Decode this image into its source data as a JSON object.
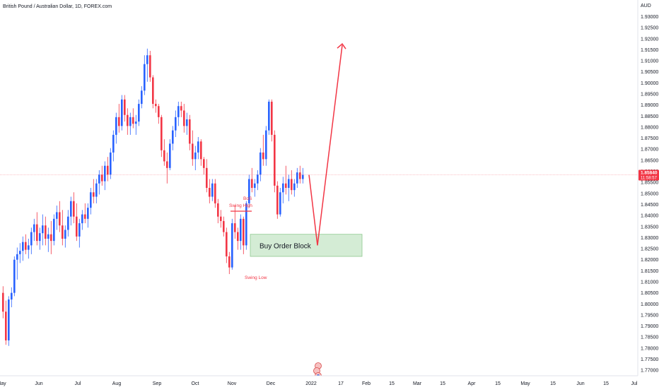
{
  "header": {
    "symbol_title": "British Pound / Australian Dollar, 1D, FOREX.com"
  },
  "price_axis": {
    "currency_label": "AUD",
    "last_price": "1.85840",
    "countdown": "11:58:57"
  },
  "annotations": {
    "bos": "BoS",
    "swing_high": "Swing High",
    "swing_low": "Swing Low",
    "order_block": "Buy Order Block"
  },
  "colors": {
    "up": "#2962ff",
    "down": "#f23645",
    "annotation": "#f23645",
    "order_block_fill": "#d4ecd5",
    "order_block_border": "#8fc98f",
    "price_line": "#f23645"
  },
  "chart_data": {
    "type": "candlestick",
    "title": "British Pound / Australian Dollar, 1D, FOREX.com",
    "y_axis": {
      "position": "right",
      "range": [
        1.7675,
        1.9375
      ],
      "tick_step": 0.005,
      "ticks": [
        "1.77000",
        "1.77500",
        "1.78000",
        "1.78500",
        "1.79000",
        "1.79500",
        "1.80000",
        "1.80500",
        "1.81000",
        "1.81500",
        "1.82000",
        "1.82500",
        "1.83000",
        "1.83500",
        "1.84000",
        "1.84500",
        "1.85000",
        "1.85500",
        "1.86000",
        "1.86500",
        "1.87000",
        "1.87500",
        "1.88000",
        "1.88500",
        "1.89000",
        "1.89500",
        "1.90000",
        "1.90500",
        "1.91000",
        "1.91500",
        "1.92000",
        "1.92500",
        "1.93000"
      ]
    },
    "x_axis_labels": [
      "May",
      "Jun",
      "Jul",
      "Aug",
      "Sep",
      "Oct",
      "Nov",
      "Dec",
      "2022",
      "17",
      "Feb",
      "15",
      "Mar",
      "15",
      "Apr",
      "15",
      "May",
      "15",
      "Jun",
      "15",
      "Jul"
    ],
    "grid": false,
    "last_price": 1.8584,
    "key_levels": {
      "swing_high": 1.8445,
      "swing_low": 1.8225,
      "order_block": [
        1.8215,
        1.8315
      ],
      "projection_low": 1.8265,
      "projection_target": 1.917
    },
    "candles": [
      {
        "o": 1.805,
        "h": 1.808,
        "l": 1.7935,
        "c": 1.7965
      },
      {
        "o": 1.7965,
        "h": 1.8015,
        "l": 1.7815,
        "c": 1.7835
      },
      {
        "o": 1.7835,
        "h": 1.8035,
        "l": 1.781,
        "c": 1.802
      },
      {
        "o": 1.802,
        "h": 1.8075,
        "l": 1.7985,
        "c": 1.805
      },
      {
        "o": 1.805,
        "h": 1.8215,
        "l": 1.8035,
        "c": 1.82
      },
      {
        "o": 1.82,
        "h": 1.8255,
        "l": 1.811,
        "c": 1.8225
      },
      {
        "o": 1.8225,
        "h": 1.8275,
        "l": 1.8185,
        "c": 1.824
      },
      {
        "o": 1.824,
        "h": 1.8305,
        "l": 1.8195,
        "c": 1.828
      },
      {
        "o": 1.828,
        "h": 1.8315,
        "l": 1.8225,
        "c": 1.8245
      },
      {
        "o": 1.8245,
        "h": 1.8295,
        "l": 1.8205,
        "c": 1.8265
      },
      {
        "o": 1.8265,
        "h": 1.8345,
        "l": 1.8225,
        "c": 1.8325
      },
      {
        "o": 1.8325,
        "h": 1.8385,
        "l": 1.8285,
        "c": 1.836
      },
      {
        "o": 1.836,
        "h": 1.8415,
        "l": 1.8265,
        "c": 1.8285
      },
      {
        "o": 1.8285,
        "h": 1.8345,
        "l": 1.8245,
        "c": 1.832
      },
      {
        "o": 1.832,
        "h": 1.8405,
        "l": 1.8265,
        "c": 1.8355
      },
      {
        "o": 1.8355,
        "h": 1.8395,
        "l": 1.8265,
        "c": 1.8295
      },
      {
        "o": 1.8295,
        "h": 1.8345,
        "l": 1.8235,
        "c": 1.8315
      },
      {
        "o": 1.8315,
        "h": 1.8375,
        "l": 1.8225,
        "c": 1.8285
      },
      {
        "o": 1.8285,
        "h": 1.8405,
        "l": 1.8265,
        "c": 1.8385
      },
      {
        "o": 1.8385,
        "h": 1.8445,
        "l": 1.8335,
        "c": 1.8415
      },
      {
        "o": 1.8415,
        "h": 1.8465,
        "l": 1.8325,
        "c": 1.8355
      },
      {
        "o": 1.8355,
        "h": 1.8425,
        "l": 1.8265,
        "c": 1.8295
      },
      {
        "o": 1.8295,
        "h": 1.8355,
        "l": 1.8255,
        "c": 1.8335
      },
      {
        "o": 1.8335,
        "h": 1.8425,
        "l": 1.8305,
        "c": 1.8395
      },
      {
        "o": 1.8395,
        "h": 1.8485,
        "l": 1.8355,
        "c": 1.8465
      },
      {
        "o": 1.8465,
        "h": 1.8505,
        "l": 1.8365,
        "c": 1.8395
      },
      {
        "o": 1.8395,
        "h": 1.8455,
        "l": 1.8285,
        "c": 1.8305
      },
      {
        "o": 1.8305,
        "h": 1.8385,
        "l": 1.8255,
        "c": 1.8365
      },
      {
        "o": 1.8365,
        "h": 1.8425,
        "l": 1.8335,
        "c": 1.8405
      },
      {
        "o": 1.8405,
        "h": 1.8455,
        "l": 1.8365,
        "c": 1.8385
      },
      {
        "o": 1.8385,
        "h": 1.8455,
        "l": 1.8345,
        "c": 1.8435
      },
      {
        "o": 1.8435,
        "h": 1.8525,
        "l": 1.8405,
        "c": 1.8505
      },
      {
        "o": 1.8505,
        "h": 1.8565,
        "l": 1.8455,
        "c": 1.8485
      },
      {
        "o": 1.8485,
        "h": 1.8565,
        "l": 1.8455,
        "c": 1.8545
      },
      {
        "o": 1.8545,
        "h": 1.8605,
        "l": 1.8495,
        "c": 1.8585
      },
      {
        "o": 1.8585,
        "h": 1.8625,
        "l": 1.8535,
        "c": 1.8555
      },
      {
        "o": 1.8555,
        "h": 1.8645,
        "l": 1.8515,
        "c": 1.8625
      },
      {
        "o": 1.8625,
        "h": 1.8665,
        "l": 1.8555,
        "c": 1.8585
      },
      {
        "o": 1.8585,
        "h": 1.8705,
        "l": 1.8565,
        "c": 1.8685
      },
      {
        "o": 1.8685,
        "h": 1.8785,
        "l": 1.8645,
        "c": 1.8765
      },
      {
        "o": 1.8765,
        "h": 1.8865,
        "l": 1.8725,
        "c": 1.8845
      },
      {
        "o": 1.8845,
        "h": 1.8905,
        "l": 1.8775,
        "c": 1.8805
      },
      {
        "o": 1.8805,
        "h": 1.8945,
        "l": 1.8785,
        "c": 1.8925
      },
      {
        "o": 1.8925,
        "h": 1.8945,
        "l": 1.8825,
        "c": 1.8855
      },
      {
        "o": 1.8855,
        "h": 1.8885,
        "l": 1.8765,
        "c": 1.8805
      },
      {
        "o": 1.8805,
        "h": 1.8865,
        "l": 1.8765,
        "c": 1.8845
      },
      {
        "o": 1.8845,
        "h": 1.8885,
        "l": 1.8795,
        "c": 1.8815
      },
      {
        "o": 1.8815,
        "h": 1.8855,
        "l": 1.8765,
        "c": 1.8825
      },
      {
        "o": 1.8825,
        "h": 1.8925,
        "l": 1.8805,
        "c": 1.8905
      },
      {
        "o": 1.8905,
        "h": 1.8985,
        "l": 1.8885,
        "c": 1.8965
      },
      {
        "o": 1.8965,
        "h": 1.9125,
        "l": 1.8945,
        "c": 1.9085
      },
      {
        "o": 1.9085,
        "h": 1.9155,
        "l": 1.9005,
        "c": 1.9125
      },
      {
        "o": 1.9125,
        "h": 1.9145,
        "l": 1.9005,
        "c": 1.9025
      },
      {
        "o": 1.9025,
        "h": 1.9035,
        "l": 1.8885,
        "c": 1.8905
      },
      {
        "o": 1.8905,
        "h": 1.8925,
        "l": 1.8865,
        "c": 1.8895
      },
      {
        "o": 1.8895,
        "h": 1.8905,
        "l": 1.8815,
        "c": 1.8845
      },
      {
        "o": 1.8845,
        "h": 1.8855,
        "l": 1.8665,
        "c": 1.8695
      },
      {
        "o": 1.8695,
        "h": 1.8745,
        "l": 1.8625,
        "c": 1.8645
      },
      {
        "o": 1.8645,
        "h": 1.8685,
        "l": 1.8545,
        "c": 1.8615
      },
      {
        "o": 1.8615,
        "h": 1.8745,
        "l": 1.8605,
        "c": 1.8725
      },
      {
        "o": 1.8725,
        "h": 1.8805,
        "l": 1.8695,
        "c": 1.8785
      },
      {
        "o": 1.8785,
        "h": 1.8875,
        "l": 1.8755,
        "c": 1.8845
      },
      {
        "o": 1.8845,
        "h": 1.8915,
        "l": 1.8805,
        "c": 1.8895
      },
      {
        "o": 1.8895,
        "h": 1.8915,
        "l": 1.8845,
        "c": 1.8875
      },
      {
        "o": 1.8875,
        "h": 1.8905,
        "l": 1.8775,
        "c": 1.8805
      },
      {
        "o": 1.8805,
        "h": 1.8865,
        "l": 1.8765,
        "c": 1.8835
      },
      {
        "o": 1.8835,
        "h": 1.8855,
        "l": 1.8695,
        "c": 1.8725
      },
      {
        "o": 1.8725,
        "h": 1.8785,
        "l": 1.8625,
        "c": 1.8655
      },
      {
        "o": 1.8655,
        "h": 1.8715,
        "l": 1.8605,
        "c": 1.8685
      },
      {
        "o": 1.8685,
        "h": 1.8755,
        "l": 1.8655,
        "c": 1.8735
      },
      {
        "o": 1.8735,
        "h": 1.8745,
        "l": 1.8625,
        "c": 1.8655
      },
      {
        "o": 1.8655,
        "h": 1.8665,
        "l": 1.8585,
        "c": 1.8615
      },
      {
        "o": 1.8615,
        "h": 1.8655,
        "l": 1.8505,
        "c": 1.8525
      },
      {
        "o": 1.8525,
        "h": 1.8565,
        "l": 1.8455,
        "c": 1.8485
      },
      {
        "o": 1.8485,
        "h": 1.8565,
        "l": 1.8465,
        "c": 1.8545
      },
      {
        "o": 1.8545,
        "h": 1.8565,
        "l": 1.8435,
        "c": 1.8455
      },
      {
        "o": 1.8455,
        "h": 1.8475,
        "l": 1.8365,
        "c": 1.8395
      },
      {
        "o": 1.8395,
        "h": 1.8425,
        "l": 1.8345,
        "c": 1.8375
      },
      {
        "o": 1.8375,
        "h": 1.8395,
        "l": 1.8305,
        "c": 1.8325
      },
      {
        "o": 1.8325,
        "h": 1.8345,
        "l": 1.8185,
        "c": 1.8215
      },
      {
        "o": 1.8215,
        "h": 1.8235,
        "l": 1.8135,
        "c": 1.8165
      },
      {
        "o": 1.8165,
        "h": 1.8385,
        "l": 1.8155,
        "c": 1.8365
      },
      {
        "o": 1.8365,
        "h": 1.8445,
        "l": 1.8295,
        "c": 1.8325
      },
      {
        "o": 1.8325,
        "h": 1.8345,
        "l": 1.8245,
        "c": 1.8285
      },
      {
        "o": 1.8285,
        "h": 1.8405,
        "l": 1.8245,
        "c": 1.8385
      },
      {
        "o": 1.8385,
        "h": 1.8395,
        "l": 1.8225,
        "c": 1.8265
      },
      {
        "o": 1.8265,
        "h": 1.8465,
        "l": 1.8245,
        "c": 1.8455
      },
      {
        "o": 1.8455,
        "h": 1.8585,
        "l": 1.8435,
        "c": 1.8565
      },
      {
        "o": 1.8565,
        "h": 1.8615,
        "l": 1.8505,
        "c": 1.8525
      },
      {
        "o": 1.8525,
        "h": 1.8565,
        "l": 1.8485,
        "c": 1.8545
      },
      {
        "o": 1.8545,
        "h": 1.8605,
        "l": 1.8515,
        "c": 1.8585
      },
      {
        "o": 1.8585,
        "h": 1.8705,
        "l": 1.8555,
        "c": 1.8685
      },
      {
        "o": 1.8685,
        "h": 1.8765,
        "l": 1.8625,
        "c": 1.8655
      },
      {
        "o": 1.8655,
        "h": 1.8805,
        "l": 1.8625,
        "c": 1.8785
      },
      {
        "o": 1.8785,
        "h": 1.8925,
        "l": 1.8765,
        "c": 1.8915
      },
      {
        "o": 1.8915,
        "h": 1.8925,
        "l": 1.8735,
        "c": 1.8765
      },
      {
        "o": 1.8765,
        "h": 1.8785,
        "l": 1.8505,
        "c": 1.8535
      },
      {
        "o": 1.8535,
        "h": 1.8555,
        "l": 1.8385,
        "c": 1.8405
      },
      {
        "o": 1.8405,
        "h": 1.8525,
        "l": 1.8395,
        "c": 1.8505
      },
      {
        "o": 1.8505,
        "h": 1.8575,
        "l": 1.8455,
        "c": 1.8545
      },
      {
        "o": 1.8545,
        "h": 1.8625,
        "l": 1.8495,
        "c": 1.8525
      },
      {
        "o": 1.8525,
        "h": 1.8585,
        "l": 1.8465,
        "c": 1.8565
      },
      {
        "o": 1.8565,
        "h": 1.8605,
        "l": 1.8495,
        "c": 1.8515
      },
      {
        "o": 1.8515,
        "h": 1.8565,
        "l": 1.8485,
        "c": 1.8545
      },
      {
        "o": 1.8545,
        "h": 1.8615,
        "l": 1.8525,
        "c": 1.8595
      },
      {
        "o": 1.8595,
        "h": 1.8625,
        "l": 1.8545,
        "c": 1.8565
      },
      {
        "o": 1.8565,
        "h": 1.8615,
        "l": 1.8545,
        "c": 1.8584
      }
    ]
  }
}
